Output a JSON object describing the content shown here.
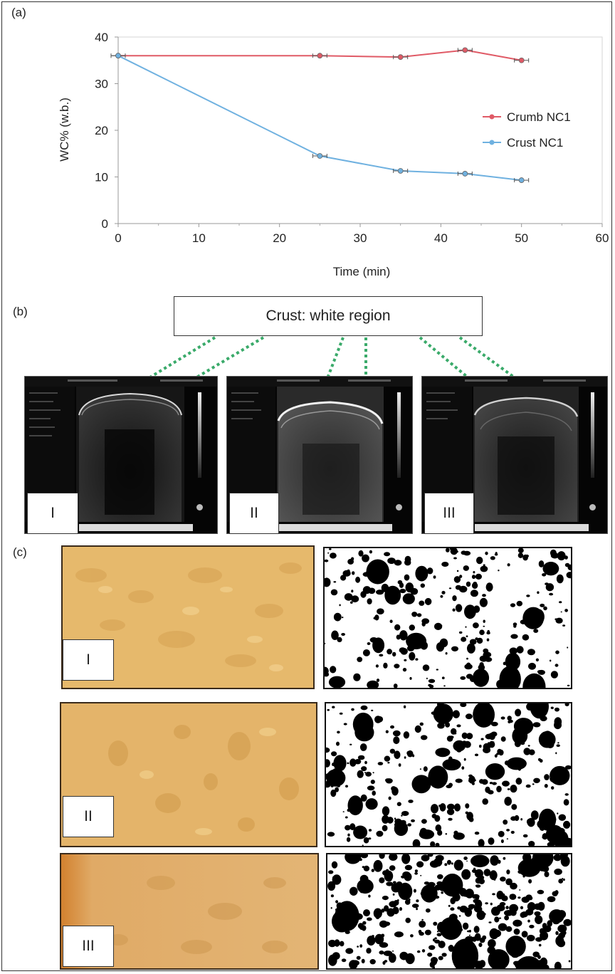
{
  "panels": {
    "a": "(a)",
    "b": "(b)",
    "c": "(c)"
  },
  "chart_data": {
    "type": "line",
    "title": "",
    "xlabel": "Time (min)",
    "ylabel": "WC% (w.b.)",
    "xlim": [
      0,
      60
    ],
    "ylim": [
      0,
      40
    ],
    "xticks": [
      0,
      10,
      20,
      30,
      40,
      50,
      60
    ],
    "yticks": [
      0,
      10,
      20,
      30,
      40
    ],
    "grid": false,
    "legend_position": "right",
    "series": [
      {
        "name": "Crumb NC1",
        "color": "#e05a66",
        "x": [
          0,
          25,
          35,
          43,
          50
        ],
        "y": [
          36,
          36,
          35.7,
          37.2,
          35
        ]
      },
      {
        "name": "Crust NC1",
        "color": "#6fb1e0",
        "x": [
          0,
          25,
          35,
          43,
          50
        ],
        "y": [
          36,
          14.5,
          11.3,
          10.7,
          9.3
        ]
      }
    ]
  },
  "panel_b": {
    "callout": "Crust: white region",
    "images": [
      {
        "label": "I"
      },
      {
        "label": "II"
      },
      {
        "label": "III"
      }
    ]
  },
  "panel_c": {
    "rows": [
      {
        "label": "I"
      },
      {
        "label": "II"
      },
      {
        "label": "III"
      }
    ]
  },
  "colors": {
    "crumb": "#e05a66",
    "crust": "#6fb1e0",
    "dotted_line": "#3aaa6a",
    "bread": "#e3b368"
  }
}
